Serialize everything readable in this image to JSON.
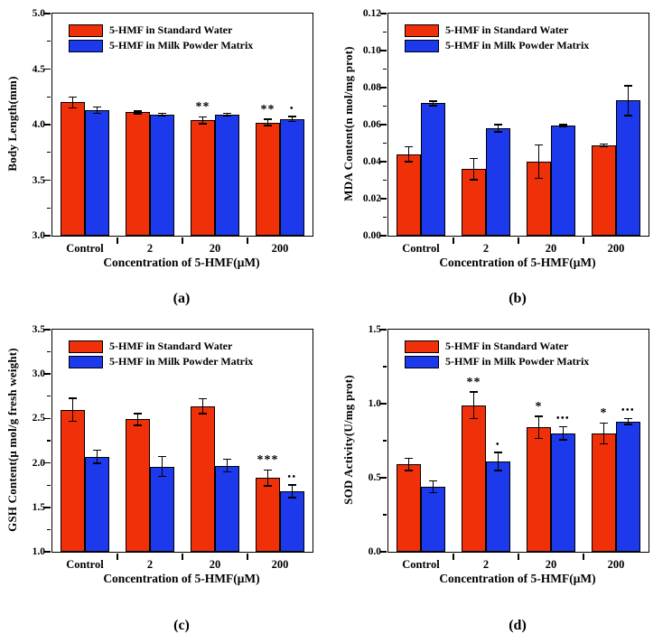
{
  "figure": {
    "background": "#ffffff",
    "frame_color": "#000000",
    "series_colors": {
      "standard": "#F03008",
      "milk": "#1C3AEC"
    },
    "legend": [
      "5-HMF in Standard Water",
      "5-HMF in Milk Powder Matrix"
    ],
    "legend_icons": [
      "red-swatch-icon",
      "blue-swatch-icon"
    ]
  },
  "chart_data": [
    {
      "type": "bar",
      "panel_label": "(a)",
      "ylabel": "Body Length(mm)",
      "xlabel": "Concentration of 5-HMF(μM)",
      "ylim": [
        3.0,
        5.0
      ],
      "yticks": [
        {
          "v": 3.0,
          "t": "3.0"
        },
        {
          "v": 3.5,
          "t": "3.5"
        },
        {
          "v": 4.0,
          "t": "4.0"
        },
        {
          "v": 4.5,
          "t": "4.5"
        },
        {
          "v": 5.0,
          "t": "5.0"
        }
      ],
      "yminor": [
        3.25,
        3.75,
        4.25,
        4.75
      ],
      "categories": [
        "Control",
        "2",
        "20",
        "200"
      ],
      "legend_position": "top-left",
      "grid": false,
      "series": [
        {
          "name": "5-HMF in Standard Water",
          "color_key": "standard",
          "values": [
            4.2,
            4.11,
            4.04,
            4.02
          ],
          "errors": [
            0.05,
            0.012,
            0.03,
            0.03
          ],
          "annotations": [
            "",
            "",
            "**",
            "**"
          ]
        },
        {
          "name": "5-HMF in Milk Powder Matrix",
          "color_key": "milk",
          "values": [
            4.13,
            4.09,
            4.09,
            4.05
          ],
          "errors": [
            0.03,
            0.012,
            0.012,
            0.022
          ],
          "annotations": [
            "",
            "",
            "",
            "•"
          ]
        }
      ]
    },
    {
      "type": "bar",
      "panel_label": "(b)",
      "ylabel": "MDA Content(n mol/mg prot)",
      "xlabel": "Concentration of 5-HMF(μM)",
      "ylim": [
        0.0,
        0.12
      ],
      "yticks": [
        {
          "v": 0.0,
          "t": "0.00"
        },
        {
          "v": 0.02,
          "t": "0.02"
        },
        {
          "v": 0.04,
          "t": "0.04"
        },
        {
          "v": 0.06,
          "t": "0.06"
        },
        {
          "v": 0.08,
          "t": "0.08"
        },
        {
          "v": 0.1,
          "t": "0.10"
        },
        {
          "v": 0.12,
          "t": "0.12"
        }
      ],
      "yminor": [
        0.01,
        0.03,
        0.05,
        0.07,
        0.09,
        0.11
      ],
      "categories": [
        "Control",
        "2",
        "20",
        "200"
      ],
      "legend_position": "top-left",
      "grid": false,
      "series": [
        {
          "name": "5-HMF in Standard Water",
          "color_key": "standard",
          "values": [
            0.044,
            0.036,
            0.04,
            0.049
          ],
          "errors": [
            0.004,
            0.0057,
            0.009,
            0.0006
          ],
          "annotations": [
            "",
            "",
            "",
            ""
          ]
        },
        {
          "name": "5-HMF in Milk Powder Matrix",
          "color_key": "milk",
          "values": [
            0.0715,
            0.058,
            0.0595,
            0.073
          ],
          "errors": [
            0.0012,
            0.002,
            0.0006,
            0.008
          ],
          "annotations": [
            "",
            "",
            "",
            ""
          ]
        }
      ]
    },
    {
      "type": "bar",
      "panel_label": "(c)",
      "ylabel": "GSH Content(μ mol/g fresh weight)",
      "xlabel": "Concentration of 5-HMF(μM)",
      "ylim": [
        1.0,
        3.5
      ],
      "yticks": [
        {
          "v": 1.0,
          "t": "1.0"
        },
        {
          "v": 1.5,
          "t": "1.5"
        },
        {
          "v": 2.0,
          "t": "2.0"
        },
        {
          "v": 2.5,
          "t": "2.5"
        },
        {
          "v": 3.0,
          "t": "3.0"
        },
        {
          "v": 3.5,
          "t": "3.5"
        }
      ],
      "yminor": [
        1.25,
        1.75,
        2.25,
        2.75,
        3.25
      ],
      "categories": [
        "Control",
        "2",
        "20",
        "200"
      ],
      "legend_position": "top-left",
      "grid": false,
      "series": [
        {
          "name": "5-HMF in Standard Water",
          "color_key": "standard",
          "values": [
            2.6,
            2.49,
            2.64,
            1.83
          ],
          "errors": [
            0.13,
            0.065,
            0.085,
            0.09
          ],
          "annotations": [
            "",
            "",
            "",
            "***"
          ]
        },
        {
          "name": "5-HMF in Milk Powder Matrix",
          "color_key": "milk",
          "values": [
            2.07,
            1.96,
            1.97,
            1.68
          ],
          "errors": [
            0.075,
            0.11,
            0.07,
            0.07
          ],
          "annotations": [
            "",
            "",
            "",
            "••"
          ]
        }
      ]
    },
    {
      "type": "bar",
      "panel_label": "(d)",
      "ylabel": "SOD Activity(U/mg prot)",
      "xlabel": "Concentration of 5-HMF(μM)",
      "ylim": [
        0.0,
        1.5
      ],
      "yticks": [
        {
          "v": 0.0,
          "t": "0.0"
        },
        {
          "v": 0.5,
          "t": "0.5"
        },
        {
          "v": 1.0,
          "t": "1.0"
        },
        {
          "v": 1.5,
          "t": "1.5"
        }
      ],
      "yminor": [
        0.25,
        0.75,
        1.25
      ],
      "categories": [
        "Control",
        "2",
        "20",
        "200"
      ],
      "legend_position": "top-left",
      "grid": false,
      "series": [
        {
          "name": "5-HMF in Standard Water",
          "color_key": "standard",
          "values": [
            0.59,
            0.99,
            0.84,
            0.8
          ],
          "errors": [
            0.04,
            0.09,
            0.075,
            0.07
          ],
          "annotations": [
            "",
            "**",
            "*",
            "*"
          ]
        },
        {
          "name": "5-HMF in Milk Powder Matrix",
          "color_key": "milk",
          "values": [
            0.44,
            0.61,
            0.8,
            0.88
          ],
          "errors": [
            0.04,
            0.06,
            0.045,
            0.02
          ],
          "annotations": [
            "",
            "•",
            "•••",
            "•••"
          ]
        }
      ]
    }
  ]
}
